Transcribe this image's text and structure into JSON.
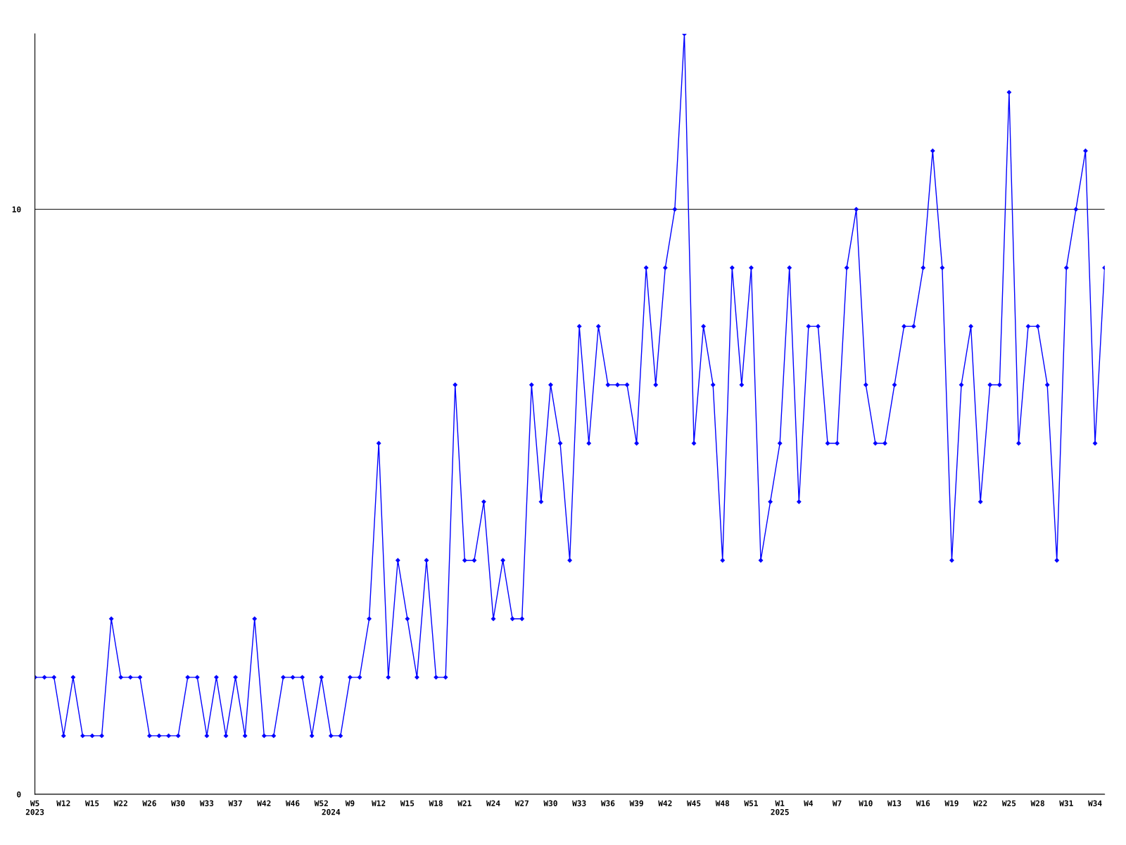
{
  "chart_data": {
    "type": "line",
    "categories": [
      "W5\n2023",
      null,
      null,
      "W12",
      null,
      null,
      "W15",
      null,
      null,
      "W22",
      null,
      null,
      "W26",
      null,
      null,
      "W30",
      null,
      null,
      "W33",
      null,
      null,
      "W37",
      null,
      null,
      "W42",
      null,
      null,
      "W46",
      null,
      null,
      "W52",
      "\n2024",
      null,
      "W9",
      null,
      null,
      "W12",
      null,
      null,
      "W15",
      null,
      null,
      "W18",
      null,
      null,
      "W21",
      null,
      null,
      "W24",
      null,
      null,
      "W27",
      null,
      null,
      "W30",
      null,
      null,
      "W33",
      null,
      null,
      "W36",
      null,
      null,
      "W39",
      null,
      null,
      "W42",
      null,
      null,
      "W45",
      null,
      null,
      "W48",
      null,
      null,
      "W51",
      null,
      null,
      "W1\n2025",
      null,
      null,
      "W4",
      null,
      null,
      "W7",
      null,
      null,
      "W10",
      null,
      null,
      "W13",
      null,
      null,
      "W16",
      null,
      null,
      "W19",
      null,
      null,
      "W22",
      null,
      null,
      "W25",
      null,
      null,
      "W28",
      null,
      null,
      "W31",
      null,
      null,
      "W34",
      null
    ],
    "series": [
      {
        "color": "#0000ff",
        "values": [
          2,
          2,
          2,
          1,
          2,
          1,
          1,
          1,
          3,
          2,
          2,
          2,
          1,
          1,
          1,
          1,
          2,
          2,
          1,
          2,
          1,
          2,
          1,
          3,
          1,
          1,
          2,
          2,
          2,
          1,
          2,
          1,
          1,
          2,
          2,
          3,
          6,
          2,
          4,
          3,
          2,
          4,
          2,
          2,
          7,
          4,
          4,
          5,
          3,
          4,
          3,
          3,
          7,
          5,
          7,
          6,
          4,
          8,
          6,
          8,
          7,
          7,
          7,
          6,
          9,
          7,
          9,
          10,
          13,
          6,
          8,
          7,
          4,
          9,
          7,
          9,
          4,
          5,
          6,
          9,
          5,
          8,
          8,
          6,
          6,
          9,
          10,
          7,
          6,
          6,
          7,
          8,
          8,
          9,
          11,
          9,
          4,
          7,
          8,
          5,
          7,
          7,
          12,
          6,
          8,
          8,
          7,
          4,
          9,
          10,
          11,
          6,
          9
        ]
      }
    ],
    "ylim": [
      0,
      13
    ],
    "yticks": [
      0,
      10
    ],
    "grid": "y",
    "marker": "diamond",
    "line_style": "solid"
  }
}
